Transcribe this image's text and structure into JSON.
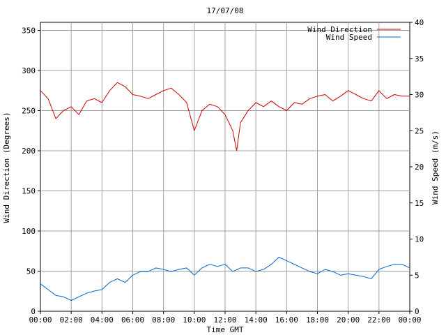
{
  "chart_data": {
    "type": "line",
    "title": "17/07/08",
    "xlabel": "Time GMT",
    "ylabel_left": "Wind Direction (Degrees)",
    "ylabel_right": "Wind Speed (m/s)",
    "x_ticks": [
      "00:00",
      "02:00",
      "04:00",
      "06:00",
      "08:00",
      "10:00",
      "12:00",
      "14:00",
      "16:00",
      "18:00",
      "20:00",
      "22:00",
      "00:00"
    ],
    "x_range_hours": [
      0,
      24
    ],
    "y_left_ticks": [
      "0",
      "50",
      "100",
      "150",
      "200",
      "250",
      "300",
      "350"
    ],
    "y_left_range": [
      0,
      360
    ],
    "y_right_ticks": [
      "0",
      "5",
      "10",
      "15",
      "20",
      "25",
      "30",
      "35",
      "40"
    ],
    "y_right_range": [
      0,
      40
    ],
    "grid": true,
    "legend_position": "top-right",
    "series": [
      {
        "name": "Wind Direction",
        "axis": "left",
        "color": "#cc0000",
        "x_hours": [
          0,
          0.5,
          1,
          1.5,
          2,
          2.5,
          3,
          3.5,
          4,
          4.5,
          5,
          5.5,
          6,
          6.5,
          7,
          7.5,
          8,
          8.5,
          9,
          9.5,
          10,
          10.5,
          11,
          11.5,
          12,
          12.5,
          12.75,
          13,
          13.5,
          14,
          14.5,
          15,
          15.5,
          16,
          16.5,
          17,
          17.5,
          18,
          18.5,
          19,
          19.5,
          20,
          20.5,
          21,
          21.5,
          22,
          22.5,
          23,
          23.5,
          24
        ],
        "values": [
          275,
          265,
          240,
          250,
          255,
          245,
          262,
          265,
          260,
          275,
          285,
          280,
          270,
          268,
          265,
          270,
          275,
          278,
          270,
          260,
          225,
          250,
          258,
          255,
          245,
          225,
          200,
          235,
          250,
          260,
          255,
          262,
          255,
          250,
          260,
          258,
          265,
          268,
          270,
          262,
          268,
          275,
          270,
          265,
          262,
          275,
          265,
          270,
          268,
          268
        ]
      },
      {
        "name": "Wind Speed",
        "axis": "right",
        "color": "#0066cc",
        "x_hours": [
          0,
          0.5,
          1,
          1.5,
          2,
          2.5,
          3,
          3.5,
          4,
          4.5,
          5,
          5.5,
          6,
          6.5,
          7,
          7.5,
          8,
          8.5,
          9,
          9.5,
          10,
          10.5,
          11,
          11.5,
          12,
          12.5,
          13,
          13.5,
          14,
          14.5,
          15,
          15.5,
          16,
          16.5,
          17,
          17.5,
          18,
          18.5,
          19,
          19.5,
          20,
          20.5,
          21,
          21.5,
          22,
          22.5,
          23,
          23.5,
          24
        ],
        "values": [
          3.8,
          3.0,
          2.2,
          2.0,
          1.5,
          2.0,
          2.5,
          2.8,
          3.0,
          4.0,
          4.5,
          4.0,
          5.0,
          5.5,
          5.5,
          6.0,
          5.8,
          5.5,
          5.8,
          6.0,
          5.0,
          6.0,
          6.5,
          6.2,
          6.5,
          5.5,
          6.0,
          6.0,
          5.5,
          5.8,
          6.5,
          7.5,
          7.0,
          6.5,
          6.0,
          5.5,
          5.2,
          5.8,
          5.5,
          5.0,
          5.2,
          5.0,
          4.8,
          4.5,
          5.8,
          6.2,
          6.5,
          6.5,
          6.0
        ]
      }
    ]
  }
}
